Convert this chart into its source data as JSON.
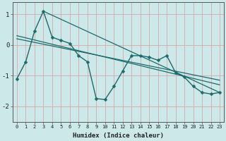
{
  "xlabel": "Humidex (Indice chaleur)",
  "background_color": "#cce8e8",
  "grid_color": "#d4a8a8",
  "line_color": "#1a6b6b",
  "xlim": [
    -0.5,
    23.5
  ],
  "ylim": [
    -2.5,
    1.4
  ],
  "yticks": [
    -2,
    -1,
    0,
    1
  ],
  "xticks": [
    0,
    1,
    2,
    3,
    4,
    5,
    6,
    7,
    8,
    9,
    10,
    11,
    12,
    13,
    14,
    15,
    16,
    17,
    18,
    19,
    20,
    21,
    22,
    23
  ],
  "data_x": [
    0,
    1,
    2,
    3,
    4,
    5,
    6,
    7,
    8,
    9,
    10,
    11,
    12,
    13,
    14,
    15,
    16,
    17,
    18,
    19,
    20,
    21,
    22,
    23
  ],
  "data_y": [
    -1.1,
    -0.55,
    0.45,
    1.1,
    0.25,
    0.15,
    0.05,
    -0.35,
    -0.55,
    -1.75,
    -1.78,
    -1.35,
    -0.85,
    -0.35,
    -0.35,
    -0.4,
    -0.5,
    -0.35,
    -0.9,
    -1.05,
    -1.35,
    -1.55,
    -1.6,
    -1.55
  ],
  "line1_x": [
    0,
    23
  ],
  "line1_y": [
    0.3,
    -1.3
  ],
  "line2_x": [
    0,
    23
  ],
  "line2_y": [
    0.2,
    -1.15
  ],
  "line3_x": [
    3,
    23
  ],
  "line3_y": [
    1.1,
    -1.55
  ]
}
